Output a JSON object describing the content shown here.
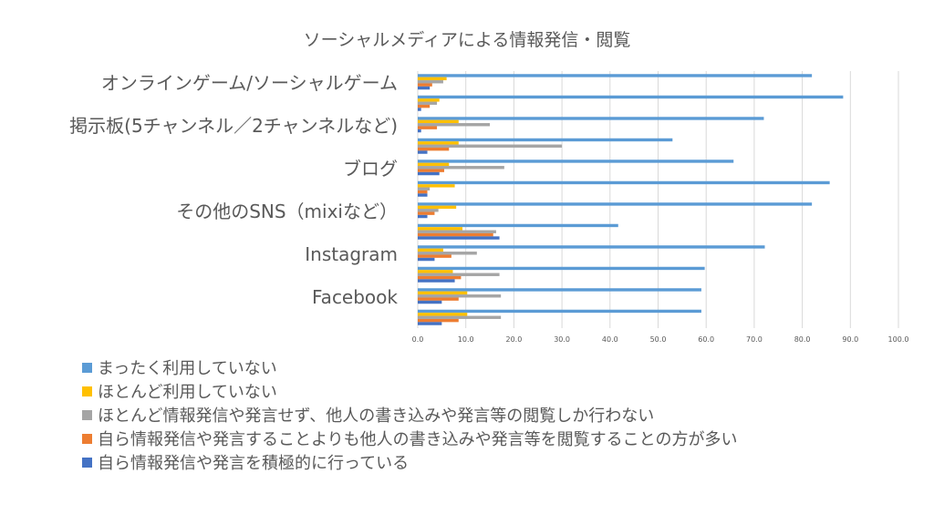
{
  "chart_data": {
    "type": "bar",
    "orientation": "horizontal",
    "title": "ソーシャルメディアによる情報発信・閲覧",
    "xlim": [
      0,
      100
    ],
    "x_ticks": [
      "0.0",
      "10.0",
      "20.0",
      "30.0",
      "40.0",
      "50.0",
      "60.0",
      "70.0",
      "80.0",
      "90.0",
      "100.0"
    ],
    "grid": true,
    "legend_position": "bottom-left",
    "category_labels": [
      "オンラインゲーム/ソーシャルゲーム",
      "掲示板(5チャンネル／2チャンネルなど)",
      "ブログ",
      "その他のSNS（mixiなど）",
      "Instagram",
      "Facebook"
    ],
    "groups_top_to_bottom": 12,
    "series": [
      {
        "name": "まったく利用していない",
        "color": "#5B9BD5",
        "values": [
          82.0,
          88.5,
          72.0,
          53.0,
          65.7,
          85.7,
          82.0,
          41.7,
          72.2,
          59.7,
          59.0,
          59.0
        ]
      },
      {
        "name": "ほとんど利用していない",
        "color": "#FFC000",
        "values": [
          6.0,
          4.5,
          8.5,
          8.5,
          6.5,
          7.7,
          8.0,
          9.3,
          5.3,
          7.3,
          10.3,
          10.3
        ]
      },
      {
        "name": "ほとんど情報発信や発言せず、他人の書き込みや発言等の閲覧しか行わない",
        "color": "#A5A5A5",
        "values": [
          5.3,
          4.0,
          15.0,
          30.0,
          18.0,
          2.5,
          4.3,
          16.3,
          12.3,
          17.0,
          17.3,
          17.3
        ]
      },
      {
        "name": "自ら情報発信や発言することよりも他人の書き込みや発言等を閲覧することの方が多い",
        "color": "#ED7D31",
        "values": [
          3.0,
          2.5,
          4.0,
          6.5,
          5.5,
          2.0,
          3.5,
          15.7,
          7.0,
          9.0,
          8.5,
          8.5
        ]
      },
      {
        "name": "自ら情報発信や発言を積極的に行っている",
        "color": "#4472C4",
        "values": [
          2.5,
          0.7,
          0.7,
          2.0,
          4.5,
          2.0,
          2.0,
          17.0,
          3.5,
          7.7,
          5.0,
          5.0
        ]
      }
    ]
  }
}
